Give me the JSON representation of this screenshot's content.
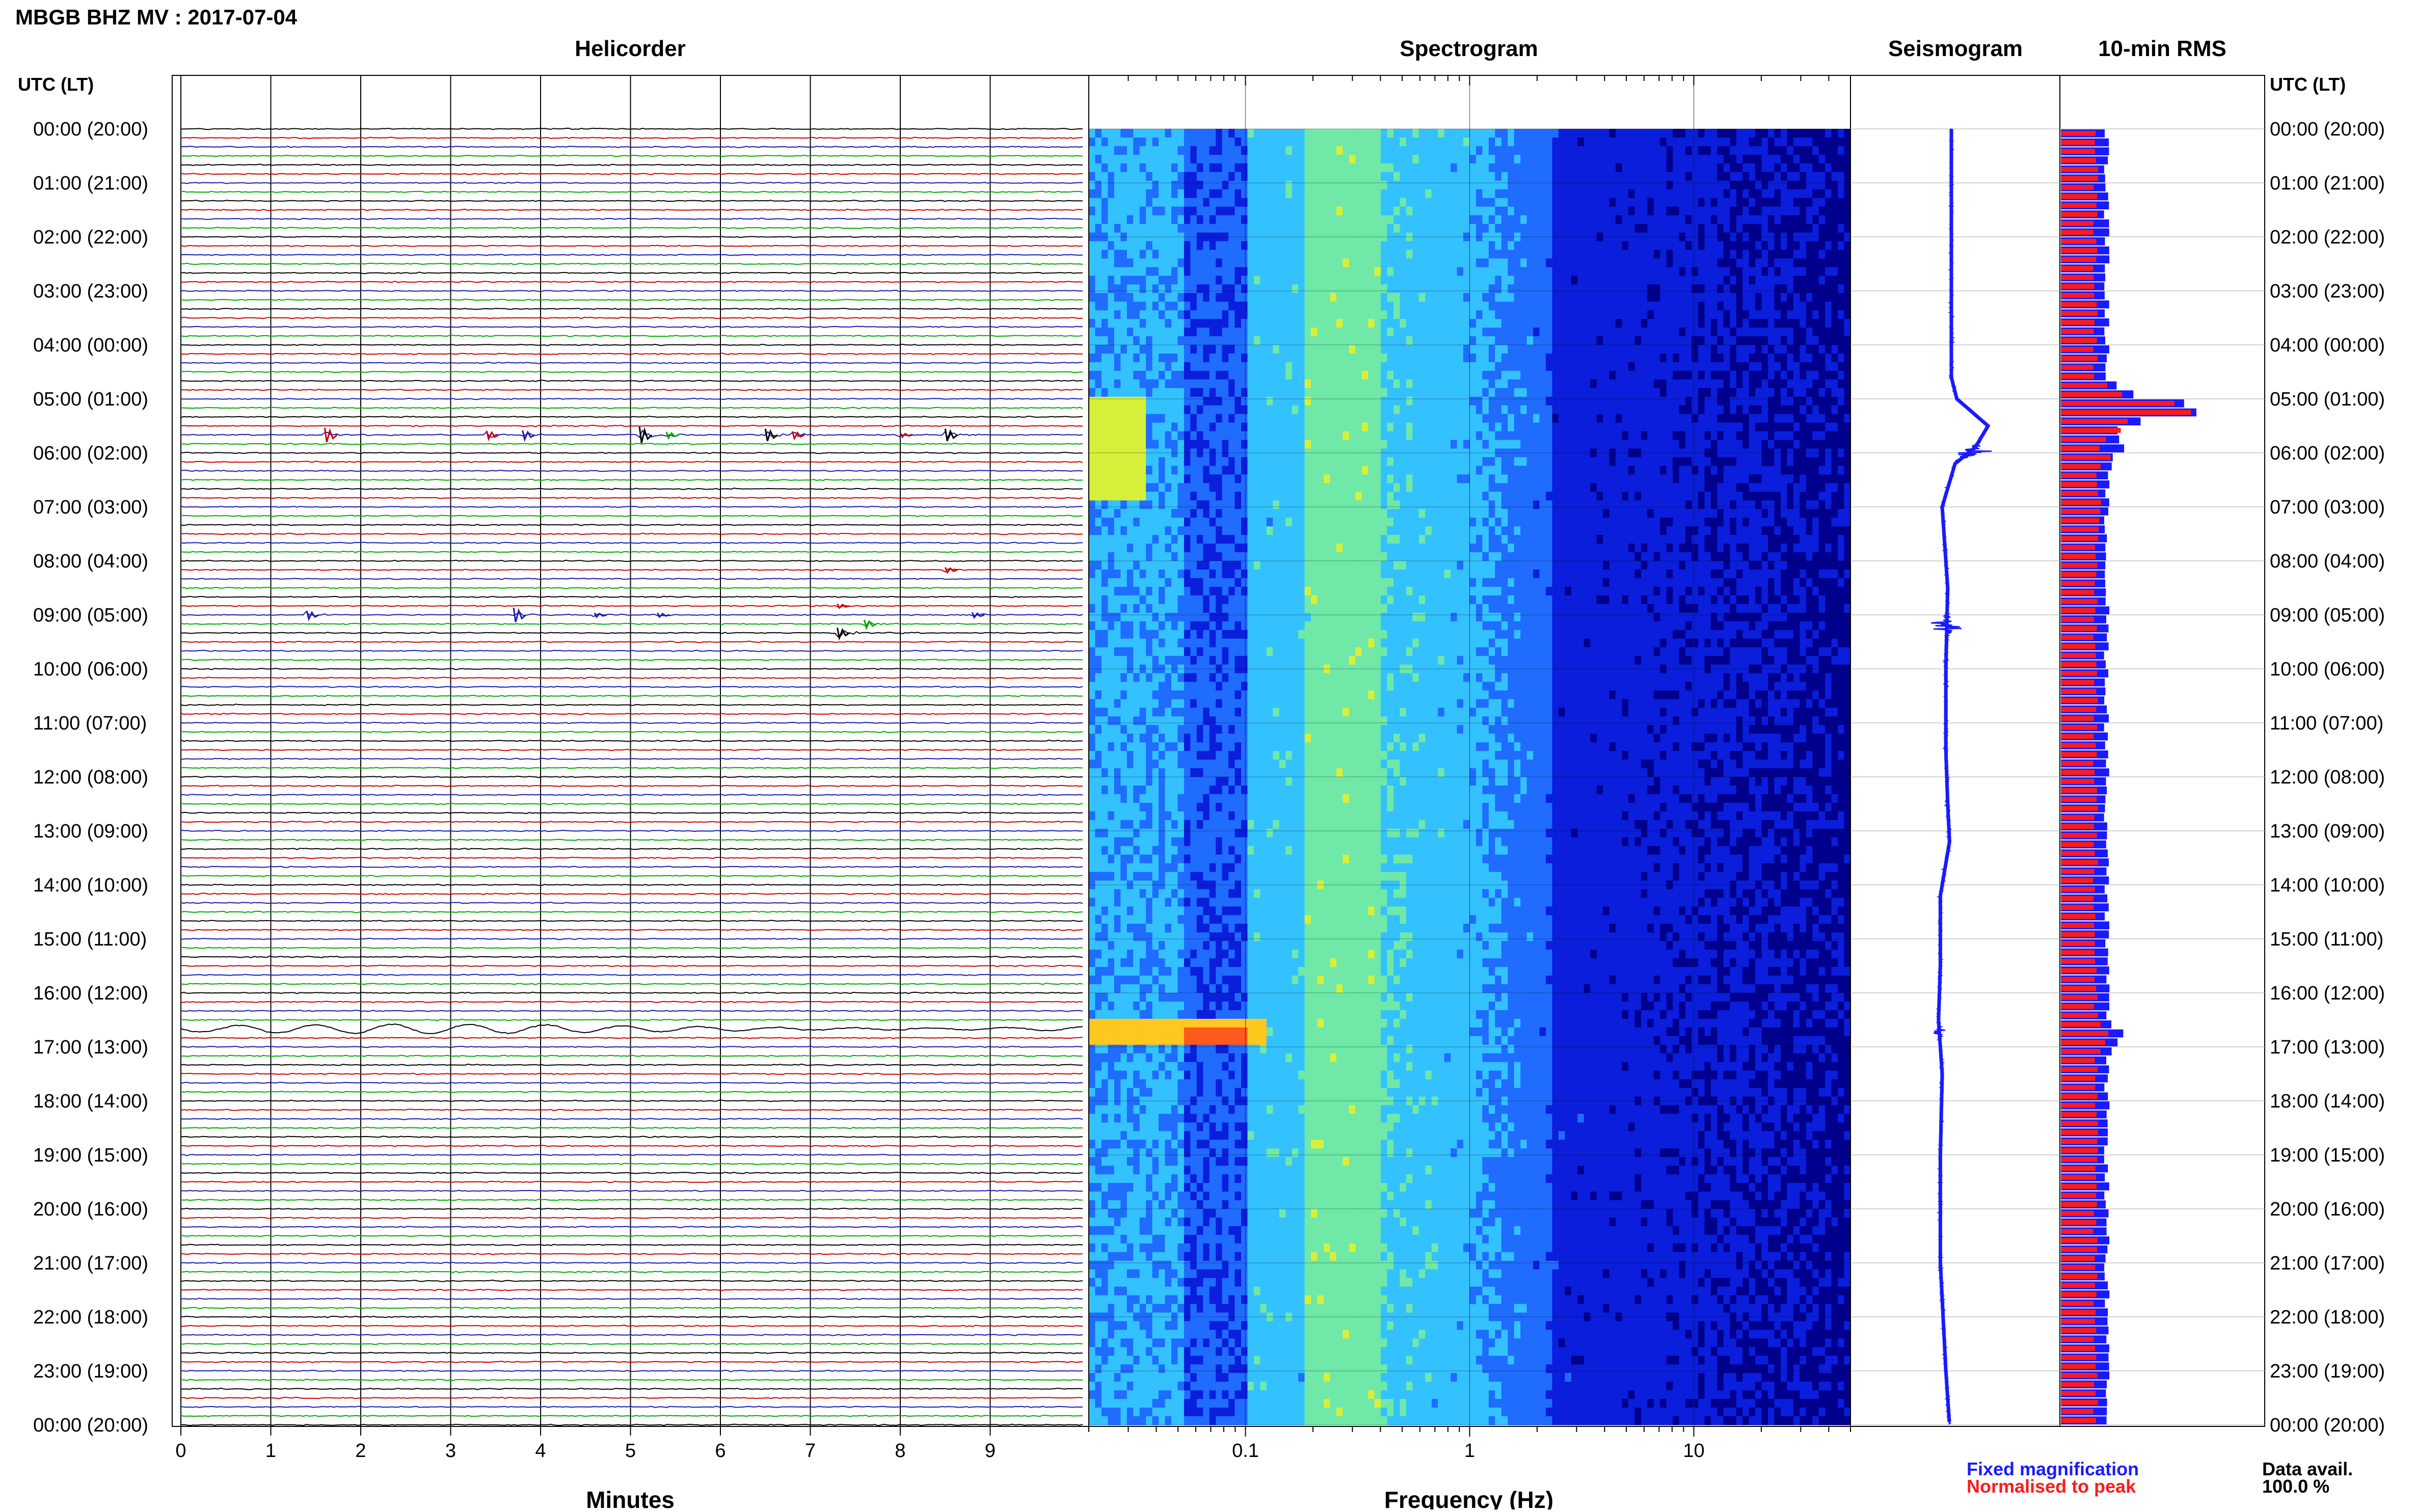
{
  "title": "MBGB BHZ MV : 2017-07-04",
  "headers": {
    "helicorder": "Helicorder",
    "spectrogram": "Spectrogram",
    "seismogram": "Seismogram",
    "rms": "10-min RMS"
  },
  "utc_lt_label": "UTC (LT)",
  "time_labels": [
    "00:00 (20:00)",
    "01:00 (21:00)",
    "02:00 (22:00)",
    "03:00 (23:00)",
    "04:00 (00:00)",
    "05:00 (01:00)",
    "06:00 (02:00)",
    "07:00 (03:00)",
    "08:00 (04:00)",
    "09:00 (05:00)",
    "10:00 (06:00)",
    "11:00 (07:00)",
    "12:00 (08:00)",
    "13:00 (09:00)",
    "14:00 (10:00)",
    "15:00 (11:00)",
    "16:00 (12:00)",
    "17:00 (13:00)",
    "18:00 (14:00)",
    "19:00 (15:00)",
    "20:00 (16:00)",
    "21:00 (17:00)",
    "22:00 (18:00)",
    "23:00 (19:00)",
    "00:00 (20:00)"
  ],
  "minutes_axis": {
    "label": "Minutes",
    "ticks": [
      "0",
      "1",
      "2",
      "3",
      "4",
      "5",
      "6",
      "7",
      "8",
      "9"
    ]
  },
  "frequency_axis": {
    "label": "Frequency (Hz)",
    "ticks": [
      "0.1",
      "1",
      "10"
    ]
  },
  "legend": {
    "fixed": "Fixed magnification",
    "normalised": "Normalised to peak",
    "fixed_color": "#1a1aff",
    "normalised_color": "#ff1a1a"
  },
  "data_avail": {
    "label": "Data avail.",
    "value": "100.0 %"
  },
  "colors": {
    "helicorder_traces": [
      "#000000",
      "#cc0000",
      "#1a1ab3",
      "#00aa00"
    ],
    "spectrogram_scale": [
      "#00008c",
      "#0a1edc",
      "#1f6cff",
      "#33c2ff",
      "#6fe8a8",
      "#d8ef3a",
      "#ffc81e",
      "#ff5a1e"
    ],
    "seismogram": "#1a1aff",
    "rms_fixed": "#1a1aff",
    "rms_normalised": "#ff1a1a"
  },
  "chart_data": [
    {
      "type": "line",
      "panel": "helicorder",
      "x_unit": "minutes",
      "xlim": [
        0,
        10
      ],
      "rows_per_hour": 6,
      "events": [
        {
          "hour": 5.6,
          "minute": 1.6,
          "amp": 14,
          "color": "#cc0000"
        },
        {
          "hour": 5.6,
          "minute": 3.4,
          "amp": 8,
          "color": "#cc0000"
        },
        {
          "hour": 5.6,
          "minute": 3.8,
          "amp": 9,
          "color": "#1a1ab3"
        },
        {
          "hour": 5.6,
          "minute": 5.1,
          "amp": 16,
          "color": "#000000"
        },
        {
          "hour": 5.6,
          "minute": 5.4,
          "amp": 6,
          "color": "#00aa00"
        },
        {
          "hour": 5.6,
          "minute": 6.5,
          "amp": 12,
          "color": "#000000"
        },
        {
          "hour": 5.6,
          "minute": 6.8,
          "amp": 7,
          "color": "#cc0000"
        },
        {
          "hour": 5.6,
          "minute": 8.5,
          "amp": 12,
          "color": "#000000"
        },
        {
          "hour": 5.6,
          "minute": 8.0,
          "amp": 4,
          "color": "#cc0000"
        },
        {
          "hour": 8.1,
          "minute": 8.5,
          "amp": 5,
          "color": "#cc0000"
        },
        {
          "hour": 9.0,
          "minute": 1.4,
          "amp": 8,
          "color": "#1a1ab3"
        },
        {
          "hour": 9.0,
          "minute": 3.7,
          "amp": 14,
          "color": "#1a1ab3"
        },
        {
          "hour": 9.0,
          "minute": 4.6,
          "amp": 4,
          "color": "#1a1ab3"
        },
        {
          "hour": 9.0,
          "minute": 5.3,
          "amp": 4,
          "color": "#1a1ab3"
        },
        {
          "hour": 9.0,
          "minute": 8.8,
          "amp": 5,
          "color": "#1a1ab3"
        },
        {
          "hour": 9.3,
          "minute": 7.3,
          "amp": 10,
          "color": "#000000"
        },
        {
          "hour": 9.2,
          "minute": 7.6,
          "amp": 8,
          "color": "#00aa00"
        },
        {
          "hour": 8.8,
          "minute": 7.3,
          "amp": 4,
          "color": "#cc0000"
        }
      ],
      "long_period_wave_hour": 16.7
    },
    {
      "type": "heatmap",
      "panel": "spectrogram",
      "x_scale": "log",
      "xlim": [
        0.02,
        50
      ],
      "ylim_hours": [
        0,
        24
      ],
      "bright_events": [
        {
          "hour_start": 5.0,
          "hour_end": 6.9,
          "freq_start": 0.02,
          "freq_end": 0.035,
          "level": 5
        },
        {
          "hour_start": 16.5,
          "hour_end": 17.0,
          "freq_start": 0.02,
          "freq_end": 0.12,
          "level": 6
        },
        {
          "hour_start": 16.6,
          "hour_end": 16.9,
          "freq_start": 0.05,
          "freq_end": 0.1,
          "level": 7
        }
      ]
    },
    {
      "type": "line",
      "panel": "seismogram",
      "ylim_hours": [
        0,
        24
      ],
      "offset_points": [
        [
          0,
          0
        ],
        [
          4.6,
          0
        ],
        [
          5.0,
          0.3
        ],
        [
          5.5,
          2.0
        ],
        [
          5.9,
          1.3
        ],
        [
          6.2,
          0.2
        ],
        [
          7.0,
          -0.5
        ],
        [
          8.5,
          -0.2
        ],
        [
          10,
          -0.3
        ],
        [
          11.5,
          -0.3
        ],
        [
          12.5,
          -0.2
        ],
        [
          13.2,
          -0.1
        ],
        [
          14.2,
          -0.6
        ],
        [
          15.5,
          -0.6
        ],
        [
          16.5,
          -0.7
        ],
        [
          17.5,
          -0.5
        ],
        [
          19,
          -0.6
        ],
        [
          21,
          -0.6
        ],
        [
          23,
          -0.3
        ],
        [
          24,
          -0.1
        ]
      ],
      "bursts": [
        {
          "hour": 6.0,
          "width": 3.5
        },
        {
          "hour": 9.2,
          "width": 4.5
        },
        {
          "hour": 16.7,
          "width": 0.8
        }
      ]
    },
    {
      "type": "bar",
      "panel": "rms",
      "bin_minutes": 10,
      "fixed_peaks": [
        {
          "hour": 5.1,
          "value": 4.0
        },
        {
          "hour": 5.8,
          "value": 1.5
        },
        {
          "hour": 6.9,
          "value": 1.0
        },
        {
          "hour": 12.6,
          "value": 0.9
        },
        {
          "hour": 16.7,
          "value": 1.4
        }
      ],
      "normalised_peaks": [
        {
          "hour": 5.1,
          "value": 4.0
        },
        {
          "hour": 5.5,
          "value": 1.4
        },
        {
          "hour": 6.0,
          "value": 1.2
        },
        {
          "hour": 6.9,
          "value": 0.9
        },
        {
          "hour": 9.1,
          "value": 0.6
        },
        {
          "hour": 12.6,
          "value": 0.7
        },
        {
          "hour": 16.7,
          "value": 1.2
        }
      ],
      "baseline_fixed": 1.0,
      "baseline_normalised": 0.8
    }
  ]
}
